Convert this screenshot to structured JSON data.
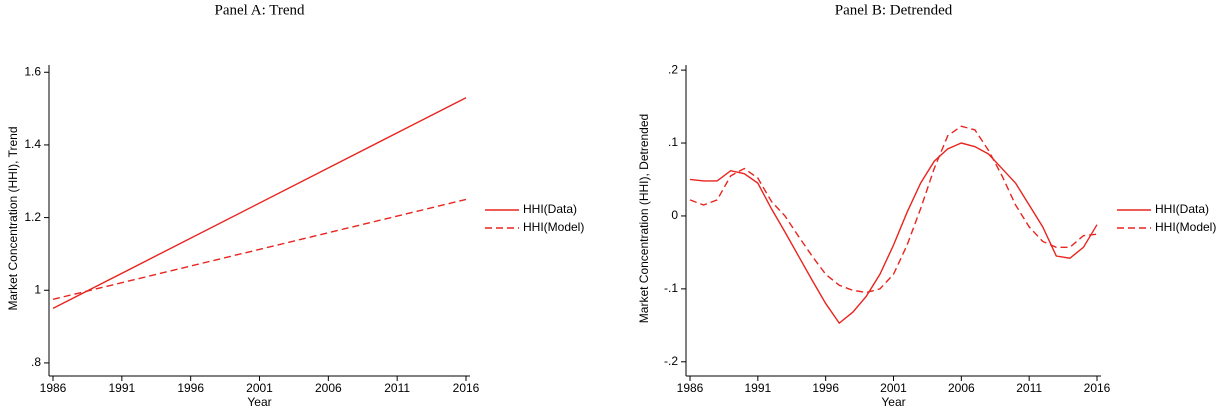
{
  "chart_data": [
    {
      "type": "line",
      "title": "Panel A: Trend",
      "x_label": "Year",
      "y_label": "Market Concentration (HHI), Trend",
      "x": [
        1986,
        2016
      ],
      "series": [
        {
          "name": "HHI(Data)",
          "color": "#e8251f",
          "style": "solid",
          "values": [
            0.95,
            1.53
          ]
        },
        {
          "name": "HHI(Model)",
          "color": "#e8251f",
          "style": "dashed",
          "values": [
            0.975,
            1.25
          ]
        }
      ],
      "xlim": [
        1986,
        2016
      ],
      "xticks": [
        1986,
        1991,
        1996,
        2001,
        2006,
        2011,
        2016
      ],
      "ylim": [
        0.775,
        1.62
      ],
      "yticks": [
        {
          "value": 0.8,
          "label": ".8"
        },
        1,
        1.2,
        1.4,
        1.6
      ],
      "legend": "right"
    },
    {
      "type": "line",
      "title": "Panel B: Detrended",
      "x_label": "Year",
      "y_label": "Market Concentration (HHI), Detrended",
      "x": [
        1986,
        1987,
        1988,
        1989,
        1990,
        1991,
        1992,
        1993,
        1994,
        1995,
        1996,
        1997,
        1998,
        1999,
        2000,
        2001,
        2002,
        2003,
        2004,
        2005,
        2006,
        2007,
        2008,
        2009,
        2010,
        2011,
        2012,
        2013,
        2014,
        2015,
        2016
      ],
      "series": [
        {
          "name": "HHI(Data)",
          "color": "#e8251f",
          "style": "solid",
          "values": [
            0.05,
            0.048,
            0.048,
            0.062,
            0.058,
            0.045,
            0.01,
            -0.022,
            -0.055,
            -0.088,
            -0.12,
            -0.147,
            -0.132,
            -0.11,
            -0.08,
            -0.04,
            0.005,
            0.045,
            0.075,
            0.092,
            0.1,
            0.095,
            0.085,
            0.065,
            0.045,
            0.015,
            -0.015,
            -0.055,
            -0.058,
            -0.043,
            -0.012
          ]
        },
        {
          "name": "HHI(Model)",
          "color": "#e8251f",
          "style": "dashed",
          "values": [
            0.022,
            0.015,
            0.022,
            0.055,
            0.065,
            0.052,
            0.02,
            0,
            -0.028,
            -0.055,
            -0.08,
            -0.095,
            -0.102,
            -0.105,
            -0.1,
            -0.08,
            -0.04,
            0.01,
            0.065,
            0.11,
            0.123,
            0.118,
            0.09,
            0.055,
            0.015,
            -0.015,
            -0.035,
            -0.043,
            -0.043,
            -0.027,
            -0.025
          ]
        }
      ],
      "xlim": [
        1986,
        2016
      ],
      "xticks": [
        1986,
        1991,
        1996,
        2001,
        2006,
        2011,
        2016
      ],
      "ylim": [
        -0.214,
        0.207
      ],
      "yticks": [
        {
          "value": -0.2,
          "label": "-.2"
        },
        {
          "value": -0.1,
          "label": "-.1"
        },
        0,
        {
          "value": 0.1,
          "label": ".1"
        },
        {
          "value": 0.2,
          "label": ".2"
        }
      ],
      "legend": "right"
    }
  ]
}
